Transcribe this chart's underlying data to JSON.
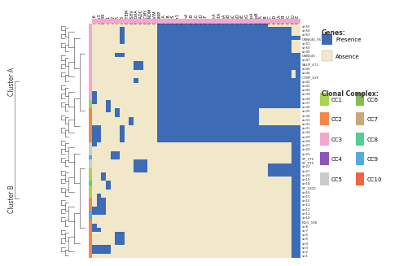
{
  "title": "",
  "presence_color": "#3d6bb5",
  "absence_color": "#f0e8c8",
  "bg_color": "#ffffff",
  "n_rows": 55,
  "n_cols": 45,
  "cluster_b_rows": 28,
  "cluster_a_rows": 27,
  "col_bar_color": "#f4a6d0",
  "row_colors_b": [
    "#f4a6d0",
    "#f4a6d0",
    "#f4a6d0",
    "#f4a6d0",
    "#f4a6d0",
    "#f4a6d0",
    "#f4a6d0",
    "#f4a6d0",
    "#f4a6d0",
    "#f4a6d0",
    "#f4a6d0",
    "#f4a6d0",
    "#f4a6d0",
    "#f4a6d0",
    "#f4a6d0",
    "#f4a6d0",
    "#f4a6d0",
    "#f4a6d0",
    "#a8d44a",
    "#a8d44a",
    "#f4874a",
    "#f4874a",
    "#f4874a",
    "#f4874a",
    "#f4874a",
    "#f4874a",
    "#f4874a",
    "#f4874a"
  ],
  "row_colors_a": [
    "#cccccc",
    "#cccccc",
    "#cccccc",
    "#55aadd",
    "#cccccc",
    "#cccccc",
    "#a8d44a",
    "#a8d44a",
    "#a8d44a",
    "#55cc99",
    "#a8d44a",
    "#a8d44a",
    "#a8d44a",
    "#f4874a",
    "#f4874a",
    "#f4874a",
    "#55aadd",
    "#55aadd",
    "#f4874a",
    "#f4874a",
    "#f4874a",
    "#f4874a",
    "#f4874a",
    "#f4874a",
    "#f4874a",
    "#f4874a",
    "#f4874a"
  ],
  "clonal_complexes": {
    "CC1": "#a8d44a",
    "CC2": "#f4874a",
    "CC3": "#f4a6d0",
    "CC4": "#8855bb",
    "CC5": "#cccccc",
    "CC6": "#88bb55",
    "CC7": "#c8a878",
    "CC8": "#55cc99",
    "CC9": "#55aadd",
    "CC10": "#ee6644"
  },
  "dendrogram_color": "#444444",
  "text_color": "#333333",
  "fontsize_col": 3.5,
  "fontsize_row": 3.0,
  "fontsize_legend_title": 5.5,
  "fontsize_legend": 5.0,
  "col_label_names": [
    "aac6",
    "aph3",
    "tet39",
    "sul1",
    "sul2",
    "strA",
    "strB",
    "blaTEM",
    "blaSHV",
    "blaOXA",
    "blaADC",
    "blaCMY",
    "blaNDM",
    "blaVIM",
    "blaIMP",
    "qnrA",
    "qnrB",
    "qnrS",
    "mcr1",
    "fos",
    "armA",
    "rmtB",
    "rmtC",
    "rmtD",
    "rmtF",
    "cfr",
    "optrA",
    "poxtA",
    "vanA",
    "vanB",
    "vanC",
    "vanD",
    "vanE",
    "vanG",
    "mupA",
    "mupB",
    "fusA",
    "fusB",
    "fusC",
    "fusD",
    "tepA",
    "tepB",
    "tepC",
    "tepD",
    "tepE"
  ],
  "row_label_names_b": [
    "str1",
    "str2",
    "str3",
    "str4",
    "str5",
    "str6",
    "str7",
    "str8",
    "NOG_186",
    "str10",
    "str11",
    "str12",
    "str13",
    "str14",
    "str15",
    "str16",
    "ST_1000",
    "str18",
    "str19",
    "str20",
    "str21",
    "str22",
    "ST_775",
    "ST_776",
    "str25",
    "str26",
    "str27",
    "str28"
  ],
  "row_label_names_a": [
    "str29",
    "str30",
    "str31",
    "str32",
    "str33",
    "str34",
    "str35",
    "str36",
    "str37",
    "str38",
    "str39",
    "str40",
    "str41",
    "str42",
    "CTMP_629",
    "str44",
    "str45",
    "SAUP_672",
    "str47",
    "GAN645",
    "str49",
    "str50",
    "str51",
    "GAN646_95",
    "str53",
    "str54",
    "str55"
  ]
}
